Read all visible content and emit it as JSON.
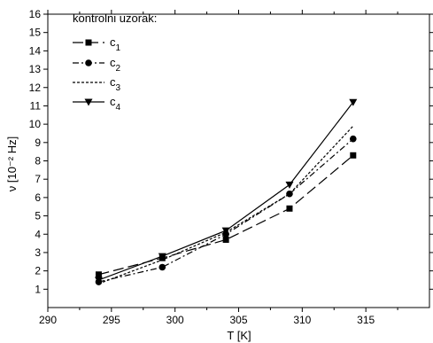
{
  "chart_data": {
    "type": "line",
    "xlabel": "T [K]",
    "ylabel": "ν [10⁻² Hz]",
    "xlim": [
      290,
      320
    ],
    "ylim": [
      0,
      16
    ],
    "xticks": [
      290,
      295,
      300,
      305,
      310,
      315
    ],
    "yticks": [
      1,
      2,
      3,
      4,
      5,
      6,
      7,
      8,
      9,
      10,
      11,
      12,
      13,
      14,
      15,
      16
    ],
    "legend_title": "kontrolni uzorak:",
    "legend_position": "top-left",
    "grid": false,
    "x": [
      294,
      299,
      304,
      309,
      314
    ],
    "series": [
      {
        "name": "c1",
        "label_base": "c",
        "label_sub": "1",
        "marker": "square",
        "dash": "long-dash",
        "values": [
          1.8,
          2.7,
          3.7,
          5.4,
          8.3
        ]
      },
      {
        "name": "c2",
        "label_base": "c",
        "label_sub": "2",
        "marker": "circle",
        "dash": "dash-dot",
        "values": [
          1.4,
          2.2,
          4.0,
          6.2,
          9.2
        ]
      },
      {
        "name": "c3",
        "label_base": "c",
        "label_sub": "3",
        "marker": "none",
        "dash": "short-dash",
        "values": [
          1.3,
          2.6,
          4.1,
          6.2,
          9.9
        ]
      },
      {
        "name": "c4",
        "label_base": "c",
        "label_sub": "4",
        "marker": "triangle-down",
        "dash": "solid",
        "values": [
          1.5,
          2.8,
          4.2,
          6.7,
          11.2
        ]
      }
    ]
  }
}
